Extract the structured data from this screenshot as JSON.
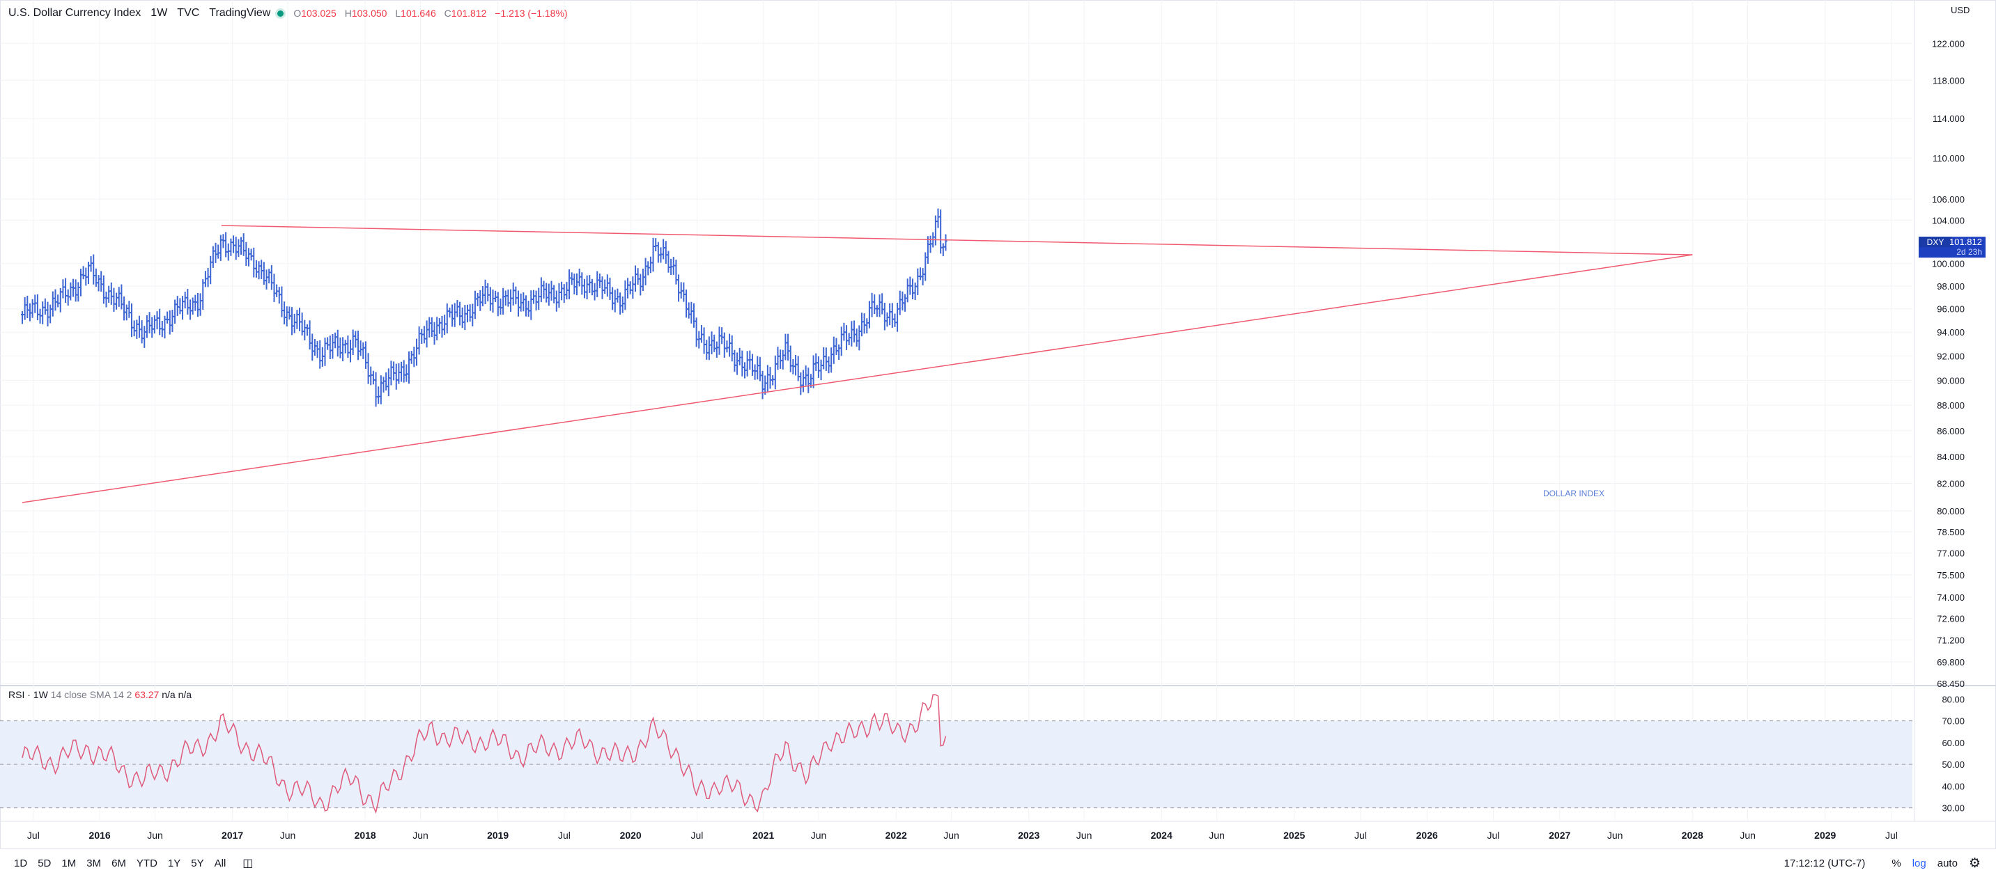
{
  "header": {
    "title": "U.S. Dollar Currency Index",
    "interval": "1W",
    "exchange": "TVC",
    "source": "TradingView",
    "ohlc": {
      "o_label": "O",
      "o": "103.025",
      "h_label": "H",
      "h": "103.050",
      "l_label": "L",
      "l": "101.646",
      "c_label": "C",
      "c": "101.812",
      "change": "−1.213 (−1.18%)"
    }
  },
  "currency": "USD",
  "rsi_header": {
    "name": "RSI · 1W",
    "params": "14 close SMA 14 2",
    "value": "63.27",
    "na1": "n/a",
    "na2": "n/a"
  },
  "price_label": {
    "symbol": "DXY",
    "value": "101.812",
    "countdown": "2d 23h"
  },
  "annotation": "DOLLAR INDEX",
  "bottom": {
    "ranges": [
      "1D",
      "5D",
      "1M",
      "3M",
      "6M",
      "YTD",
      "1Y",
      "5Y",
      "All"
    ],
    "time": "17:12:12 (UTC-7)",
    "percent": "%",
    "log": "log",
    "auto": "auto"
  },
  "colors": {
    "bars": "#3d66d4",
    "lines": "#f05a6e",
    "rsi": "#e05a7b",
    "band": "#e9f0fb",
    "label_bg": "#1e3fbf"
  },
  "chart_data": [
    {
      "type": "line",
      "title": "U.S. Dollar Currency Index",
      "scale": "log",
      "ylim": [
        68.45,
        124.5
      ],
      "y_ticks": [
        "122.000",
        "118.000",
        "114.000",
        "110.000",
        "106.000",
        "104.000",
        "100.000",
        "98.000",
        "96.000",
        "94.000",
        "92.000",
        "90.000",
        "88.000",
        "86.000",
        "84.000",
        "82.000",
        "80.000",
        "78.500",
        "77.000",
        "75.500",
        "74.000",
        "72.600",
        "71.200",
        "69.800",
        "68.450"
      ],
      "x_ticks": [
        "Jul",
        "2016",
        "Jun",
        "2017",
        "Jun",
        "2018",
        "Jun",
        "2019",
        "Jul",
        "2020",
        "Jul",
        "2021",
        "Jun",
        "2022",
        "Jun",
        "2023",
        "Jun",
        "2024",
        "Jun",
        "2025",
        "Jul",
        "2026",
        "Jul",
        "2027",
        "Jun",
        "2028",
        "Jun",
        "2029",
        "Jul"
      ],
      "x_range": [
        "2015-06",
        "2029-07"
      ],
      "series": [
        {
          "values_x": [
            "2015-06",
            "2015-09",
            "2015-12",
            "2016-03",
            "2016-05",
            "2016-08",
            "2016-10",
            "2016-12",
            "2017-03",
            "2017-06",
            "2017-09",
            "2017-12",
            "2018-02",
            "2018-04",
            "2018-07",
            "2018-10",
            "2018-12",
            "2019-03",
            "2019-06",
            "2019-09",
            "2019-12",
            "2020-02",
            "2020-03",
            "2020-05",
            "2020-07",
            "2020-09",
            "2020-11",
            "2021-01",
            "2021-03",
            "2021-05",
            "2021-07",
            "2021-09",
            "2021-11",
            "2022-01",
            "2022-03",
            "2022-05",
            "2022-05"
          ],
          "values_y": [
            95.5,
            96.4,
            99.3,
            96.1,
            93.9,
            95.8,
            96.9,
            102.2,
            100.3,
            95.6,
            92.3,
            93.3,
            89.4,
            90.4,
            94.5,
            95.7,
            97.1,
            96.5,
            97.4,
            98.4,
            96.9,
            98.6,
            101.5,
            99.4,
            93.4,
            93.0,
            91.7,
            89.9,
            92.2,
            89.8,
            92.3,
            93.7,
            96.0,
            95.5,
            98.8,
            104.2,
            101.812
          ]
        }
      ],
      "trendlines": [
        {
          "from": {
            "x": "2016-12",
            "y": 103.5
          },
          "to": {
            "x": "2028-01",
            "y": 100.8
          }
        },
        {
          "from": {
            "x": "2015-06",
            "y": 80.6
          },
          "to": {
            "x": "2028-01",
            "y": 100.8
          }
        }
      ]
    },
    {
      "type": "line",
      "title": "RSI · 1W",
      "ylim": [
        27,
        83
      ],
      "y_ticks": [
        "80.00",
        "70.00",
        "60.00",
        "50.00",
        "40.00",
        "30.00"
      ],
      "bands": [
        30,
        50,
        70
      ],
      "series": [
        {
          "values_x": [
            "2015-06",
            "2015-09",
            "2015-12",
            "2016-03",
            "2016-05",
            "2016-08",
            "2016-10",
            "2016-12",
            "2017-03",
            "2017-06",
            "2017-09",
            "2017-12",
            "2018-02",
            "2018-04",
            "2018-07",
            "2018-10",
            "2018-12",
            "2019-03",
            "2019-06",
            "2019-09",
            "2019-12",
            "2020-02",
            "2020-03",
            "2020-05",
            "2020-07",
            "2020-09",
            "2020-11",
            "2021-01",
            "2021-03",
            "2021-05",
            "2021-07",
            "2021-09",
            "2021-11",
            "2022-01",
            "2022-03",
            "2022-05",
            "2022-05"
          ],
          "values_y": [
            53,
            52,
            58,
            48,
            42,
            52,
            58,
            68,
            56,
            40,
            33,
            44,
            30,
            48,
            66,
            60,
            62,
            55,
            58,
            60,
            52,
            60,
            65,
            58,
            36,
            42,
            36,
            34,
            60,
            42,
            63,
            62,
            72,
            64,
            70,
            82,
            63.27
          ]
        }
      ]
    }
  ]
}
